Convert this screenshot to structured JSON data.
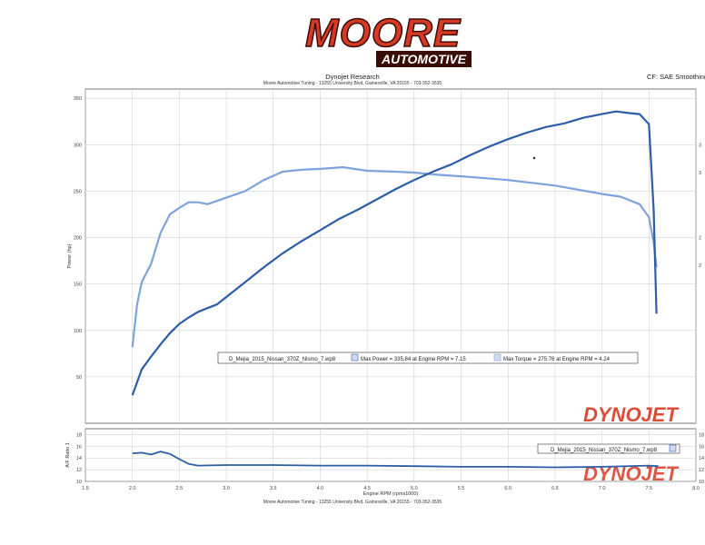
{
  "header": {
    "logo_main": "MOORE",
    "logo_sub": "AUTOMOTIVE",
    "title": "Dynojet Research",
    "subtitle": "Moore Automotive Tuning - 13255 University Blvd, Gainesville, VA 20155 - 703-352-3535",
    "correction": "CF: SAE Smoothing"
  },
  "footer": {
    "subtitle": "Moore Automotive Tuning - 13255 University Blvd, Gainesville, VA 20155 - 703-352-3535"
  },
  "brand_watermark": "DYNOJET",
  "colors": {
    "power": "#2c5da8",
    "torque": "#7ea3dc",
    "afr": "#2c5da8",
    "brand_red": "#d63a24"
  },
  "legend": {
    "run_file": "D_Mejia_2015_Nissan_370Z_Nismo_7.wp8",
    "max_power": "Max Power = 335.84 at Engine RPM = 7.15",
    "max_torque": "Max Torque = 275.76 at Engine RPM = 4.24"
  },
  "afr_legend": {
    "run_file": "D_Mejia_2015_Nissan_370Z_Nismo_7.wp8"
  },
  "chart_data": [
    {
      "type": "line",
      "ylabel": "Power (hp)",
      "xlim": [
        1.5,
        8.0
      ],
      "ylim": [
        0,
        360
      ],
      "y_ticks": [
        "50",
        "100",
        "150",
        "200",
        "250",
        "300",
        "350"
      ],
      "y_ticks_right": [
        "3",
        "3",
        "2",
        "2"
      ],
      "grid": true,
      "series": [
        {
          "name": "power",
          "x": [
            2.0,
            2.1,
            2.2,
            2.3,
            2.4,
            2.5,
            2.6,
            2.7,
            2.8,
            2.9,
            3.0,
            3.2,
            3.4,
            3.6,
            3.8,
            4.0,
            4.2,
            4.4,
            4.6,
            4.8,
            5.0,
            5.2,
            5.4,
            5.6,
            5.8,
            6.0,
            6.2,
            6.4,
            6.6,
            6.8,
            7.0,
            7.15,
            7.3,
            7.4,
            7.5,
            7.55,
            7.58
          ],
          "y": [
            30,
            58,
            72,
            85,
            97,
            107,
            114,
            120,
            124,
            128,
            136,
            152,
            168,
            183,
            196,
            208,
            220,
            230,
            241,
            252,
            262,
            271,
            279,
            289,
            298,
            306,
            313,
            319,
            323,
            329,
            333,
            335.8,
            334,
            333,
            322,
            230,
            118
          ]
        },
        {
          "name": "torque",
          "x": [
            2.0,
            2.05,
            2.1,
            2.15,
            2.2,
            2.3,
            2.4,
            2.5,
            2.6,
            2.7,
            2.8,
            3.0,
            3.2,
            3.4,
            3.6,
            3.8,
            4.0,
            4.24,
            4.5,
            4.8,
            5.0,
            5.2,
            5.5,
            6.0,
            6.5,
            7.0,
            7.2,
            7.4,
            7.5,
            7.55,
            7.58
          ],
          "y": [
            82,
            128,
            152,
            162,
            172,
            205,
            225,
            232,
            238,
            238,
            236,
            243,
            250,
            262,
            271,
            273,
            274,
            275.8,
            272,
            271,
            270,
            268,
            266,
            262,
            256,
            247,
            244,
            236,
            222,
            195,
            168
          ]
        }
      ]
    },
    {
      "type": "line",
      "ylabel": "A/F Ratio 1",
      "xlabel": "Engine RPM (rpmx1000)",
      "xlim": [
        1.5,
        8.0
      ],
      "ylim": [
        10,
        19
      ],
      "x_ticks": [
        "1.5",
        "2.0",
        "2.5",
        "3.0",
        "3.5",
        "4.0",
        "4.5",
        "5.0",
        "5.5",
        "6.0",
        "6.5",
        "7.0",
        "7.5",
        "8.0"
      ],
      "y_ticks": [
        "10",
        "12",
        "14",
        "16",
        "18"
      ],
      "y_ticks_right": [
        "10",
        "12",
        "14",
        "16",
        "18"
      ],
      "grid": true,
      "series": [
        {
          "name": "afr",
          "x": [
            2.0,
            2.1,
            2.2,
            2.3,
            2.4,
            2.5,
            2.6,
            2.7,
            3.0,
            3.5,
            4.0,
            4.5,
            5.0,
            5.5,
            6.0,
            6.5,
            7.0,
            7.5,
            7.6
          ],
          "y": [
            14.8,
            14.9,
            14.6,
            15.1,
            14.7,
            13.8,
            13.0,
            12.7,
            12.8,
            12.8,
            12.7,
            12.7,
            12.6,
            12.5,
            12.5,
            12.4,
            12.5,
            12.7,
            12.6
          ]
        }
      ]
    }
  ]
}
